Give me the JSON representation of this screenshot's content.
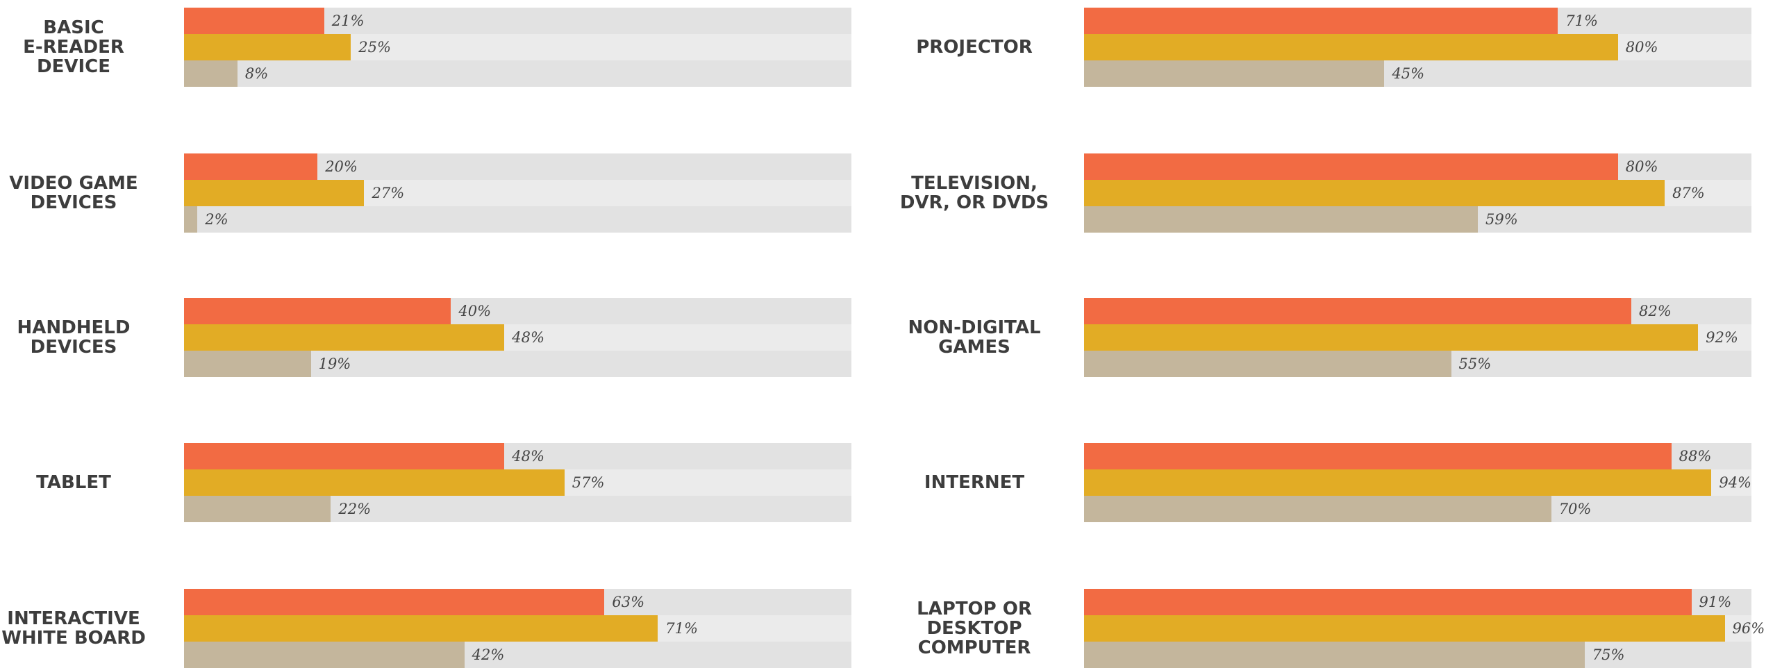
{
  "chart_data": {
    "type": "bar",
    "orientation": "horizontal",
    "categories": [
      "BASIC\nE-READER\nDEVICE",
      "VIDEO GAME\nDEVICES",
      "HANDHELD\nDEVICES",
      "TABLET",
      "INTERACTIVE\nWHITE BOARD",
      "PROJECTOR",
      "TELEVISION,\nDVR, OR DVDS",
      "NON-DIGITAL\nGAMES",
      "INTERNET",
      "LAPTOP OR\nDESKTOP\nCOMPUTER"
    ],
    "xlim": [
      0,
      100
    ],
    "series": [
      {
        "color": "#f26b43",
        "values": [
          21,
          20,
          40,
          48,
          63,
          71,
          80,
          82,
          88,
          91
        ],
        "value_labels": [
          "21%",
          "20%",
          "40%",
          "48%",
          "63%",
          "71%",
          "80%",
          "82%",
          "88%",
          "91%"
        ]
      },
      {
        "color": "#e2ac25",
        "values": [
          25,
          27,
          48,
          57,
          71,
          80,
          87,
          92,
          94,
          96
        ],
        "value_labels": [
          "25%",
          "27%",
          "48%",
          "57%",
          "71%",
          "80%",
          "87%",
          "92%",
          "94%",
          "96%"
        ]
      },
      {
        "color": "#c4b69c",
        "values": [
          8,
          2,
          19,
          22,
          42,
          45,
          59,
          55,
          70,
          75
        ],
        "value_labels": [
          "8%",
          "2%",
          "19%",
          "22%",
          "42%",
          "45%",
          "59%",
          "55%",
          "70%",
          "75%"
        ]
      }
    ]
  }
}
